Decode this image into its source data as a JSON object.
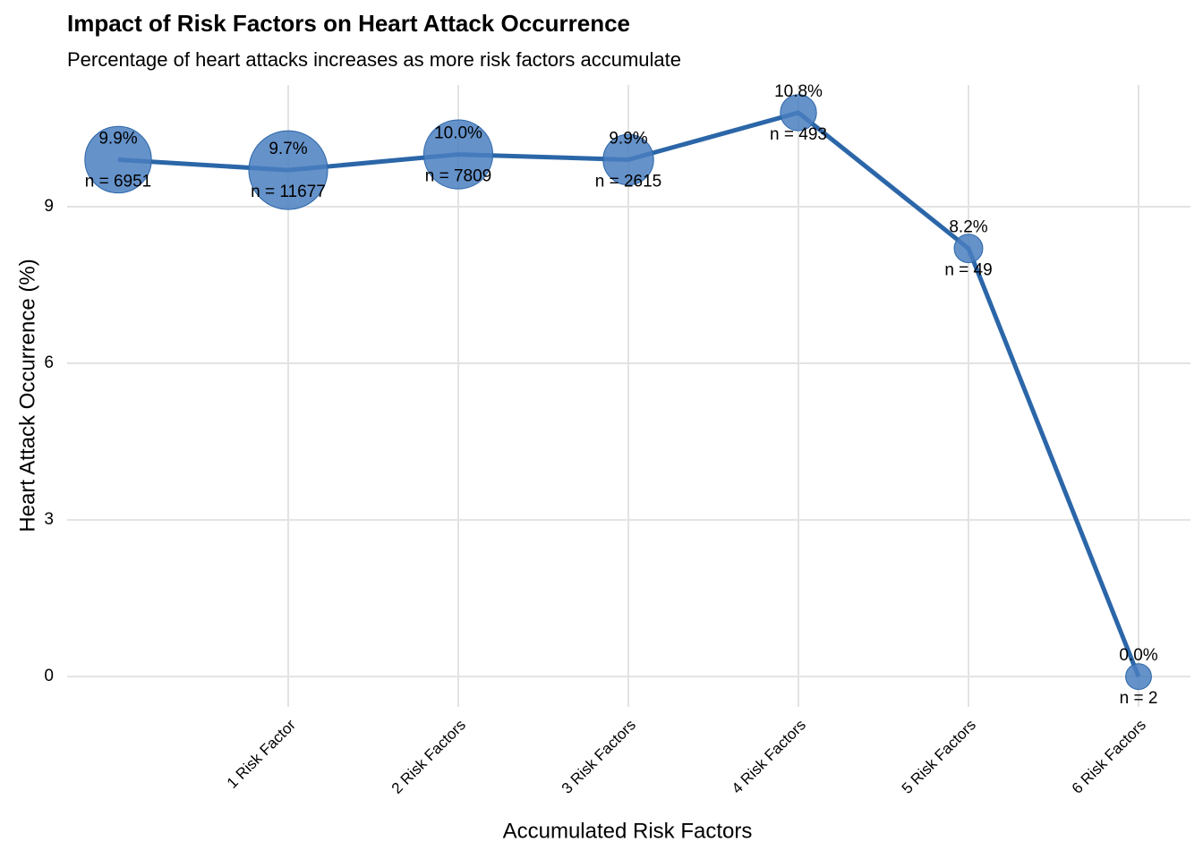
{
  "chart_data": {
    "type": "line",
    "title": "Impact of Risk Factors on Heart Attack Occurrence",
    "subtitle": "Percentage of heart attacks increases as more risk factors accumulate",
    "x_label": "Accumulated Risk Factors",
    "y_label": "Heart Attack Occurrence (%)",
    "categories": [
      null,
      "1 Risk Factor",
      "2 Risk Factors",
      "3 Risk Factors",
      "4 Risk Factors",
      "5 Risk Factors",
      "6 Risk Factors"
    ],
    "values": [
      9.9,
      9.7,
      10.0,
      9.9,
      10.8,
      8.2,
      0.0
    ],
    "value_labels": [
      "9.9%",
      "9.7%",
      "10.0%",
      "9.9%",
      "10.8%",
      "8.2%",
      "0.0%"
    ],
    "sizes": [
      6951,
      11677,
      7809,
      2615,
      493,
      49,
      2
    ],
    "size_labels": [
      "n = 6951",
      "n = 11677",
      "n = 7809",
      "n = 2615",
      "n = 493",
      "n = 49",
      "n = 2"
    ],
    "color": "#2b66a8",
    "point_color": "#4a7fbf",
    "ylim": [
      -0.58,
      11.33
    ],
    "yticks": [
      0,
      3,
      6,
      9
    ],
    "grid": true
  }
}
